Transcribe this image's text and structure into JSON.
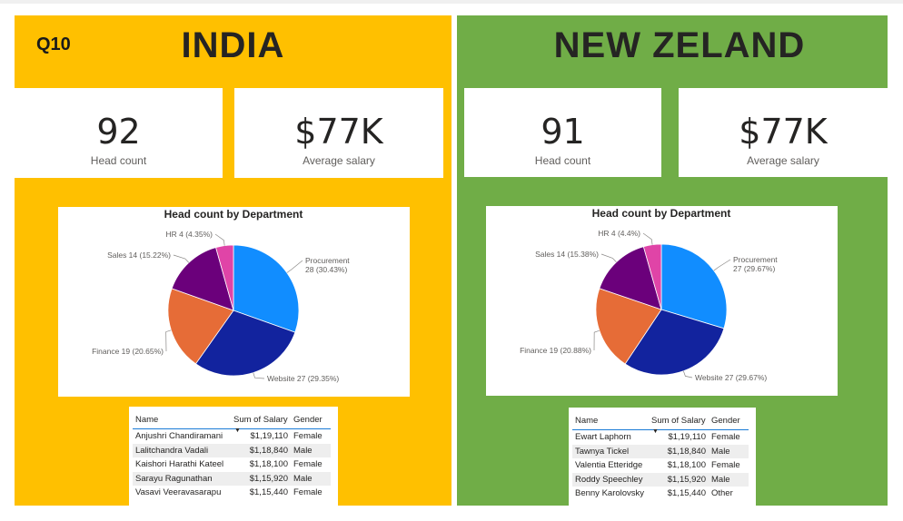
{
  "question_label": "Q10",
  "colors": {
    "india_bg": "#ffc000",
    "nz_bg": "#70ad47",
    "procurement": "#118dff",
    "website": "#12239e",
    "finance": "#e66c37",
    "sales": "#6b007b",
    "hr": "#e044a7"
  },
  "panels": [
    {
      "country": "INDIA",
      "kpis": [
        {
          "value": "92",
          "label": "Head count"
        },
        {
          "value": "$77K",
          "label": "Average salary"
        }
      ],
      "table": {
        "headers": [
          "Name",
          "Sum of Salary",
          "Gender"
        ],
        "rows": [
          [
            "Anjushri Chandiramani",
            "$1,19,110",
            "Female"
          ],
          [
            "Lalitchandra Vadali",
            "$1,18,840",
            "Male"
          ],
          [
            "Kaishori Harathi Kateel",
            "$1,18,100",
            "Female"
          ],
          [
            "Sarayu Ragunathan",
            "$1,15,920",
            "Male"
          ],
          [
            "Vasavi Veeravasarapu",
            "$1,15,440",
            "Female"
          ]
        ]
      }
    },
    {
      "country": "NEW ZELAND",
      "kpis": [
        {
          "value": "91",
          "label": "Head count"
        },
        {
          "value": "$77K",
          "label": "Average salary"
        }
      ],
      "table": {
        "headers": [
          "Name",
          "Sum of Salary",
          "Gender"
        ],
        "rows": [
          [
            "Ewart Laphorn",
            "$1,19,110",
            "Female"
          ],
          [
            "Tawnya Tickel",
            "$1,18,840",
            "Male"
          ],
          [
            "Valentia Etteridge",
            "$1,18,100",
            "Female"
          ],
          [
            "Roddy Speechley",
            "$1,15,920",
            "Male"
          ],
          [
            "Benny Karolovsky",
            "$1,15,440",
            "Other"
          ]
        ]
      }
    }
  ],
  "chart_data": [
    {
      "type": "pie",
      "title": "Head count by Department",
      "categories": [
        "Procurement",
        "Website",
        "Finance",
        "Sales",
        "HR"
      ],
      "values": [
        28,
        27,
        19,
        14,
        4
      ],
      "labels": [
        "Procurement\n28 (30.43%)",
        "Website 27 (29.35%)",
        "Finance 19 (20.65%)",
        "Sales 14 (15.22%)",
        "HR 4 (4.35%)"
      ]
    },
    {
      "type": "pie",
      "title": "Head count by Department",
      "categories": [
        "Procurement",
        "Website",
        "Finance",
        "Sales",
        "HR"
      ],
      "values": [
        27,
        27,
        19,
        14,
        4
      ],
      "labels": [
        "Procurement\n27 (29.67%)",
        "Website 27 (29.67%)",
        "Finance 19 (20.88%)",
        "Sales 14 (15.38%)",
        "HR 4 (4.4%)"
      ]
    }
  ]
}
